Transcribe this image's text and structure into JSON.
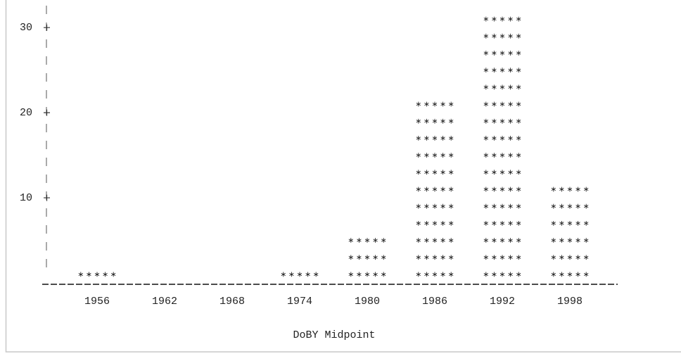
{
  "chart_data": {
    "type": "bar",
    "x_label": "DoBY Midpoint",
    "categories": [
      "1956",
      "1962",
      "1968",
      "1974",
      "1980",
      "1986",
      "1992",
      "1998"
    ],
    "values": [
      2,
      0,
      0,
      2,
      6,
      22,
      32,
      12
    ],
    "ylim": [
      0,
      32
    ],
    "yticks": [
      10,
      20,
      30
    ],
    "color": "#222222",
    "symbol_step": 2
  }
}
